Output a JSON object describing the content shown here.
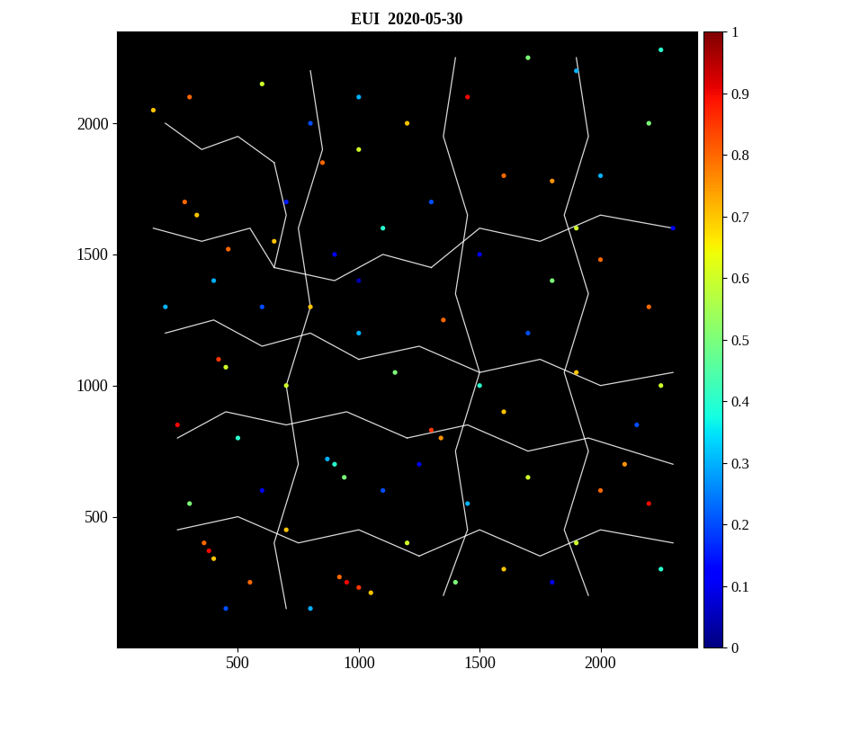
{
  "chart_data": {
    "type": "scatter",
    "title": "EUI  2020-05-30",
    "x": [
      380,
      360,
      400,
      950,
      1000,
      920,
      1050,
      1300,
      1340,
      900,
      940,
      870,
      280,
      330,
      420,
      450,
      460,
      650,
      850,
      1000,
      1200,
      1450,
      1600,
      1800,
      1900,
      2000,
      1800,
      1900,
      2200,
      2250,
      2100,
      2000,
      2200,
      1900,
      1600,
      1400,
      1200,
      700,
      550,
      300,
      250,
      500,
      700,
      800,
      1000,
      1150,
      1350,
      1500,
      1600,
      1700,
      1450,
      1100,
      600,
      200,
      150,
      300,
      600,
      800,
      1000,
      1300,
      1100,
      900,
      600,
      400,
      1700,
      2000,
      2200,
      2250,
      1900,
      1700,
      2300,
      2150,
      1800,
      2250,
      1250,
      800,
      450,
      1500,
      1000,
      700
    ],
    "y": [
      370,
      400,
      340,
      250,
      230,
      270,
      210,
      830,
      800,
      700,
      650,
      720,
      1700,
      1650,
      1100,
      1070,
      1520,
      1550,
      1850,
      1900,
      2000,
      2100,
      1800,
      1780,
      1600,
      1480,
      1400,
      1050,
      1300,
      1000,
      700,
      600,
      550,
      400,
      300,
      250,
      400,
      450,
      250,
      550,
      850,
      800,
      1000,
      1300,
      1200,
      1050,
      1250,
      1000,
      900,
      650,
      550,
      600,
      600,
      1300,
      2050,
      2100,
      2150,
      2000,
      2100,
      1700,
      1600,
      1500,
      1300,
      1400,
      1200,
      1800,
      2000,
      2280,
      2200,
      2250,
      1600,
      850,
      250,
      300,
      700,
      150,
      150,
      1500,
      1400,
      1700
    ],
    "values": [
      0.9,
      0.8,
      0.7,
      0.9,
      0.85,
      0.8,
      0.7,
      0.85,
      0.75,
      0.4,
      0.5,
      0.3,
      0.8,
      0.7,
      0.85,
      0.6,
      0.8,
      0.7,
      0.8,
      0.6,
      0.7,
      0.9,
      0.8,
      0.75,
      0.6,
      0.8,
      0.5,
      0.7,
      0.8,
      0.6,
      0.75,
      0.8,
      0.9,
      0.6,
      0.7,
      0.5,
      0.6,
      0.7,
      0.8,
      0.5,
      0.9,
      0.4,
      0.6,
      0.7,
      0.3,
      0.5,
      0.8,
      0.4,
      0.7,
      0.6,
      0.3,
      0.2,
      0.1,
      0.3,
      0.7,
      0.8,
      0.6,
      0.2,
      0.3,
      0.2,
      0.4,
      0.1,
      0.2,
      0.3,
      0.2,
      0.3,
      0.5,
      0.4,
      0.3,
      0.5,
      0.1,
      0.2,
      0.1,
      0.4,
      0.1,
      0.3,
      0.2,
      0.1,
      0.05,
      0.15
    ],
    "network": [
      [
        [
          200,
          2000
        ],
        [
          350,
          1900
        ],
        [
          500,
          1950
        ],
        [
          650,
          1850
        ]
      ],
      [
        [
          650,
          1850
        ],
        [
          700,
          1650
        ],
        [
          650,
          1450
        ]
      ],
      [
        [
          150,
          1600
        ],
        [
          350,
          1550
        ],
        [
          550,
          1600
        ],
        [
          650,
          1450
        ]
      ],
      [
        [
          650,
          1450
        ],
        [
          900,
          1400
        ],
        [
          1100,
          1500
        ],
        [
          1300,
          1450
        ]
      ],
      [
        [
          1300,
          1450
        ],
        [
          1500,
          1600
        ],
        [
          1750,
          1550
        ],
        [
          2000,
          1650
        ],
        [
          2300,
          1600
        ]
      ],
      [
        [
          200,
          1200
        ],
        [
          400,
          1250
        ],
        [
          600,
          1150
        ],
        [
          800,
          1200
        ],
        [
          1000,
          1100
        ]
      ],
      [
        [
          1000,
          1100
        ],
        [
          1250,
          1150
        ],
        [
          1500,
          1050
        ],
        [
          1750,
          1100
        ],
        [
          2000,
          1000
        ],
        [
          2300,
          1050
        ]
      ],
      [
        [
          250,
          800
        ],
        [
          450,
          900
        ],
        [
          700,
          850
        ],
        [
          950,
          900
        ],
        [
          1200,
          800
        ]
      ],
      [
        [
          1200,
          800
        ],
        [
          1450,
          850
        ],
        [
          1700,
          750
        ],
        [
          1950,
          800
        ],
        [
          2300,
          700
        ]
      ],
      [
        [
          250,
          450
        ],
        [
          500,
          500
        ],
        [
          750,
          400
        ],
        [
          1000,
          450
        ],
        [
          1250,
          350
        ]
      ],
      [
        [
          1250,
          350
        ],
        [
          1500,
          450
        ],
        [
          1750,
          350
        ],
        [
          2000,
          450
        ],
        [
          2300,
          400
        ]
      ],
      [
        [
          800,
          2200
        ],
        [
          850,
          1900
        ],
        [
          750,
          1600
        ],
        [
          800,
          1300
        ],
        [
          700,
          1000
        ],
        [
          750,
          700
        ],
        [
          650,
          400
        ],
        [
          700,
          150
        ]
      ],
      [
        [
          1400,
          2250
        ],
        [
          1350,
          1950
        ],
        [
          1450,
          1650
        ],
        [
          1400,
          1350
        ],
        [
          1500,
          1050
        ],
        [
          1400,
          750
        ],
        [
          1450,
          450
        ],
        [
          1350,
          200
        ]
      ],
      [
        [
          1900,
          2250
        ],
        [
          1950,
          1950
        ],
        [
          1850,
          1650
        ],
        [
          1950,
          1350
        ],
        [
          1850,
          1050
        ],
        [
          1950,
          750
        ],
        [
          1850,
          450
        ],
        [
          1950,
          200
        ]
      ]
    ],
    "xlim": [
      0,
      2400
    ],
    "ylim": [
      0,
      2350
    ],
    "xticks": [
      500,
      1000,
      1500,
      2000
    ],
    "yticks": [
      500,
      1000,
      1500,
      2000
    ],
    "colorbar": {
      "range": [
        0,
        1
      ],
      "ticks": [
        0,
        0.1,
        0.2,
        0.3,
        0.4,
        0.5,
        0.6,
        0.7,
        0.8,
        0.9,
        1
      ]
    }
  }
}
